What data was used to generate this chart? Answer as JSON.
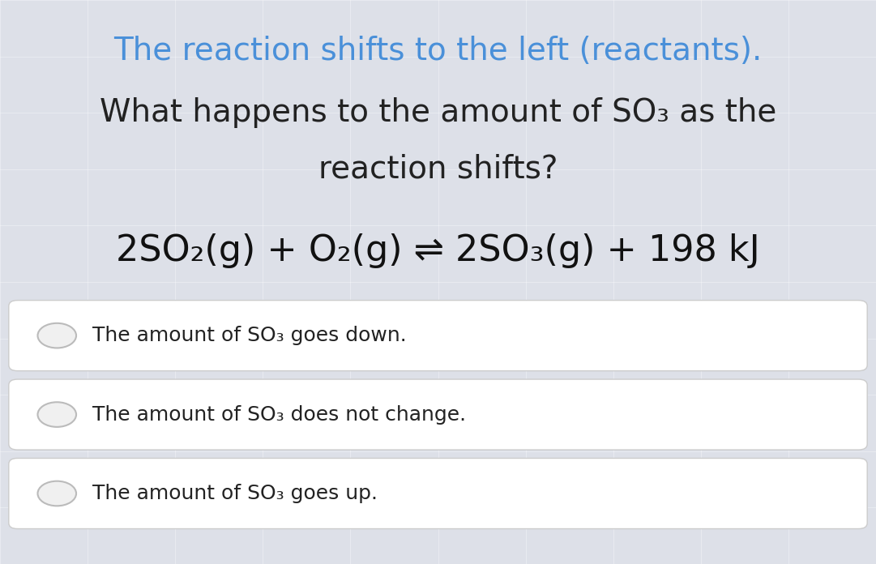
{
  "bg_color": "#dde0e8",
  "title_line1_color": "#4a90d9",
  "title_line1": "The reaction shifts to the left (reactants).",
  "title_line2_color": "#222222",
  "title_line2": "What happens to the amount of SO₃ as the",
  "title_line3_color": "#222222",
  "title_line3": "reaction shifts?",
  "equation": "2SO₂(g) + O₂(g) ⇌ 2SO₃(g) + 198 kJ",
  "options": [
    "The amount of SO₃ goes down.",
    "The amount of SO₃ does not change.",
    "The amount of SO₃ goes up."
  ],
  "option_bg": "#ffffff",
  "option_border": "#cccccc",
  "radio_color": "#bbbbbb",
  "title_fontsize": 28,
  "equation_fontsize": 32,
  "option_fontsize": 18
}
